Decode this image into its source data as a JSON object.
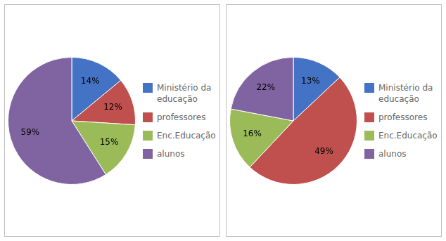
{
  "chart_data": [
    {
      "type": "pie",
      "categories": [
        "Ministério da\neducação",
        "professores",
        "Enc.Educação",
        "alunos"
      ],
      "values": [
        14,
        12,
        15,
        59
      ],
      "value_labels": [
        "14%",
        "12%",
        "15%",
        "59%"
      ],
      "colors": [
        "#4472c4",
        "#c0504d",
        "#9bbb59",
        "#8064a2"
      ],
      "data_labels": true,
      "legend": "right"
    },
    {
      "type": "pie",
      "categories": [
        "Ministério da\neducação",
        "professores",
        "Enc.Educação",
        "alunos"
      ],
      "values": [
        13,
        49,
        16,
        22
      ],
      "value_labels": [
        "13%",
        "49%",
        "16%",
        "22%"
      ],
      "colors": [
        "#4472c4",
        "#c0504d",
        "#9bbb59",
        "#8064a2"
      ],
      "data_labels": true,
      "legend": "right"
    }
  ]
}
